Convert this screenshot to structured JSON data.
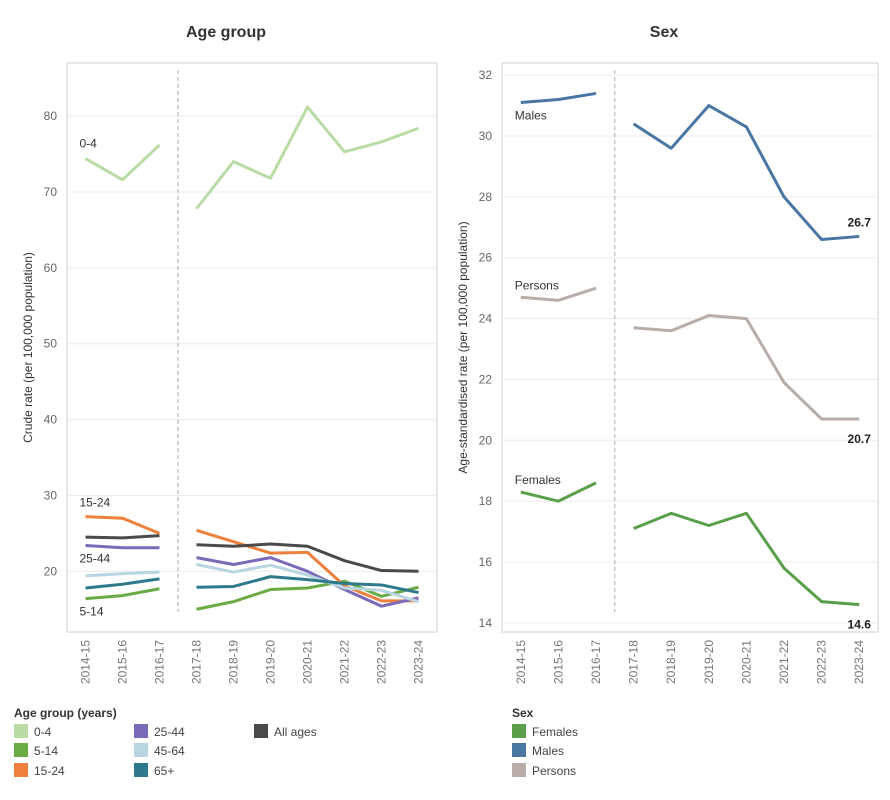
{
  "panels": {
    "left_title": "Age group",
    "right_title": "Sex"
  },
  "legends": {
    "age": {
      "title": "Age group (years)",
      "items": [
        {
          "label": "0-4",
          "color": "#b9dba4"
        },
        {
          "label": "5-14",
          "color": "#6aab46"
        },
        {
          "label": "15-24",
          "color": "#ef7f3c"
        },
        {
          "label": "25-44",
          "color": "#7b6ab8"
        },
        {
          "label": "45-64",
          "color": "#b8d6e2"
        },
        {
          "label": "65+",
          "color": "#2e7a8c"
        },
        {
          "label": "All ages",
          "color": "#4a4a4a"
        }
      ]
    },
    "sex": {
      "title": "Sex",
      "items": [
        {
          "label": "Females",
          "color": "#5aa04a"
        },
        {
          "label": "Males",
          "color": "#4a76a4"
        },
        {
          "label": "Persons",
          "color": "#b8ada8"
        }
      ]
    }
  },
  "chart_data": [
    {
      "type": "line",
      "title": "Age group",
      "ylabel": "Crude rate (per 100,000 population)",
      "xlabel": "",
      "categories": [
        "2014-15",
        "2015-16",
        "2016-17",
        "2017-18",
        "2018-19",
        "2019-20",
        "2020-21",
        "2021-22",
        "2022-23",
        "2023-24"
      ],
      "ylim": [
        12,
        87
      ],
      "yticks": [
        20,
        30,
        40,
        50,
        60,
        70,
        80
      ],
      "grid": true,
      "series_break": "between 2016-17 and 2017-18",
      "series": [
        {
          "name": "0-4",
          "color": "#b9dba4",
          "label": "0-4",
          "values": [
            74.4,
            71.6,
            76.2,
            67.8,
            74.0,
            71.8,
            81.2,
            75.3,
            76.6,
            78.4
          ]
        },
        {
          "name": "5-14",
          "color": "#6aab46",
          "label": "5-14",
          "values": [
            16.4,
            16.8,
            17.7,
            15.0,
            16.0,
            17.6,
            17.8,
            18.7,
            16.7,
            17.9
          ]
        },
        {
          "name": "15-24",
          "color": "#ef7f3c",
          "label": "15-24",
          "values": [
            27.2,
            27.0,
            25.0,
            25.4,
            23.9,
            22.4,
            22.5,
            18.1,
            16.1,
            16.1
          ]
        },
        {
          "name": "25-44",
          "color": "#7b6ab8",
          "label": "25-44",
          "values": [
            23.4,
            23.1,
            23.1,
            21.8,
            20.9,
            21.8,
            20.0,
            17.6,
            15.4,
            16.5
          ]
        },
        {
          "name": "45-64",
          "color": "#b8d6e2",
          "values": [
            19.4,
            19.7,
            19.9,
            20.9,
            19.9,
            20.8,
            19.5,
            17.8,
            17.5,
            16.0
          ]
        },
        {
          "name": "65+",
          "color": "#2e7a8c",
          "values": [
            17.8,
            18.3,
            19.0,
            17.9,
            18.0,
            19.3,
            18.9,
            18.4,
            18.2,
            17.2
          ]
        },
        {
          "name": "All ages",
          "color": "#4a4a4a",
          "values": [
            24.5,
            24.4,
            24.7,
            23.5,
            23.3,
            23.6,
            23.3,
            21.4,
            20.1,
            20.0
          ]
        }
      ]
    },
    {
      "type": "line",
      "title": "Sex",
      "ylabel": "Age-standardised rate (per 100,000 population)",
      "xlabel": "",
      "categories": [
        "2014-15",
        "2015-16",
        "2016-17",
        "2017-18",
        "2018-19",
        "2019-20",
        "2020-21",
        "2021-22",
        "2022-23",
        "2023-24"
      ],
      "ylim": [
        13.7,
        32.4
      ],
      "yticks": [
        14,
        16,
        18,
        20,
        22,
        24,
        26,
        28,
        30,
        32
      ],
      "grid": true,
      "series_break": "between 2016-17 and 2017-18",
      "series": [
        {
          "name": "Males",
          "color": "#4a76a4",
          "label": "Males",
          "end_label": "26.7",
          "values": [
            31.1,
            31.2,
            31.4,
            30.4,
            29.6,
            31.0,
            30.3,
            28.0,
            26.6,
            26.7
          ]
        },
        {
          "name": "Persons",
          "color": "#b8ada8",
          "label": "Persons",
          "end_label": "20.7",
          "values": [
            24.7,
            24.6,
            25.0,
            23.7,
            23.6,
            24.1,
            24.0,
            21.9,
            20.7,
            20.7
          ]
        },
        {
          "name": "Females",
          "color": "#5aa04a",
          "label": "Females",
          "end_label": "14.6",
          "values": [
            18.3,
            18.0,
            18.6,
            17.1,
            17.6,
            17.2,
            17.6,
            15.8,
            14.7,
            14.6
          ]
        }
      ]
    }
  ]
}
